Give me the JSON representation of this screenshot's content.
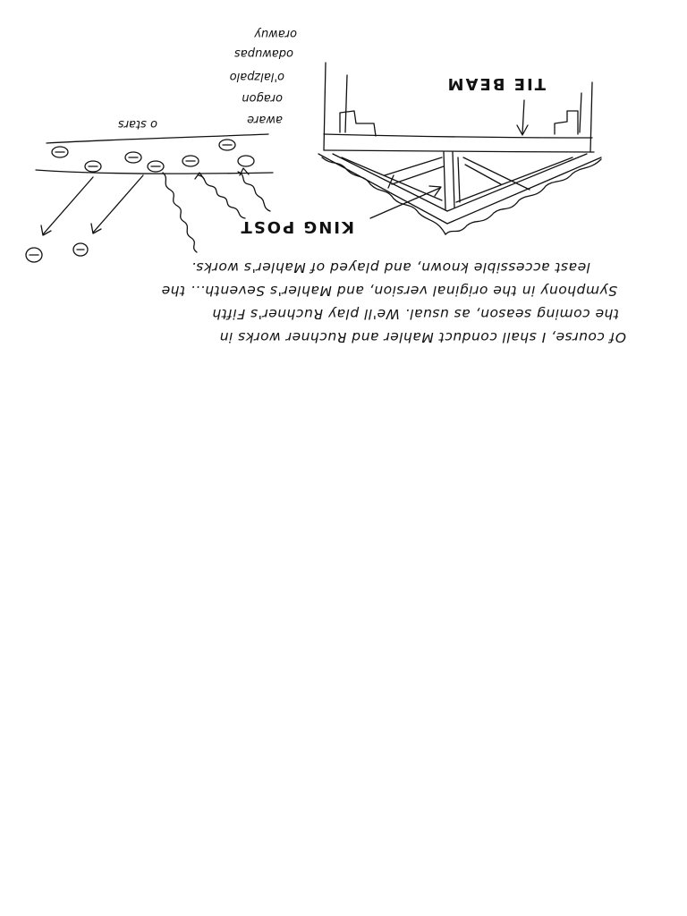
{
  "labels": {
    "tie_beam": "TIE BEAM",
    "king_post": "KING POST",
    "stars": "o stars"
  },
  "legend_list": [
    "aware",
    "oragon",
    "o'lalzpalo",
    "odawupas",
    "orawuy"
  ],
  "paragraph": [
    "Of course, I shall conduct Mahler and Ruchner works in",
    "the coming season, as usual. We'll play Ruchner's Fifth",
    "Symphony in the original version, and Mahler's Seventh... the",
    "least accessible known, and played of Mahler's works."
  ]
}
